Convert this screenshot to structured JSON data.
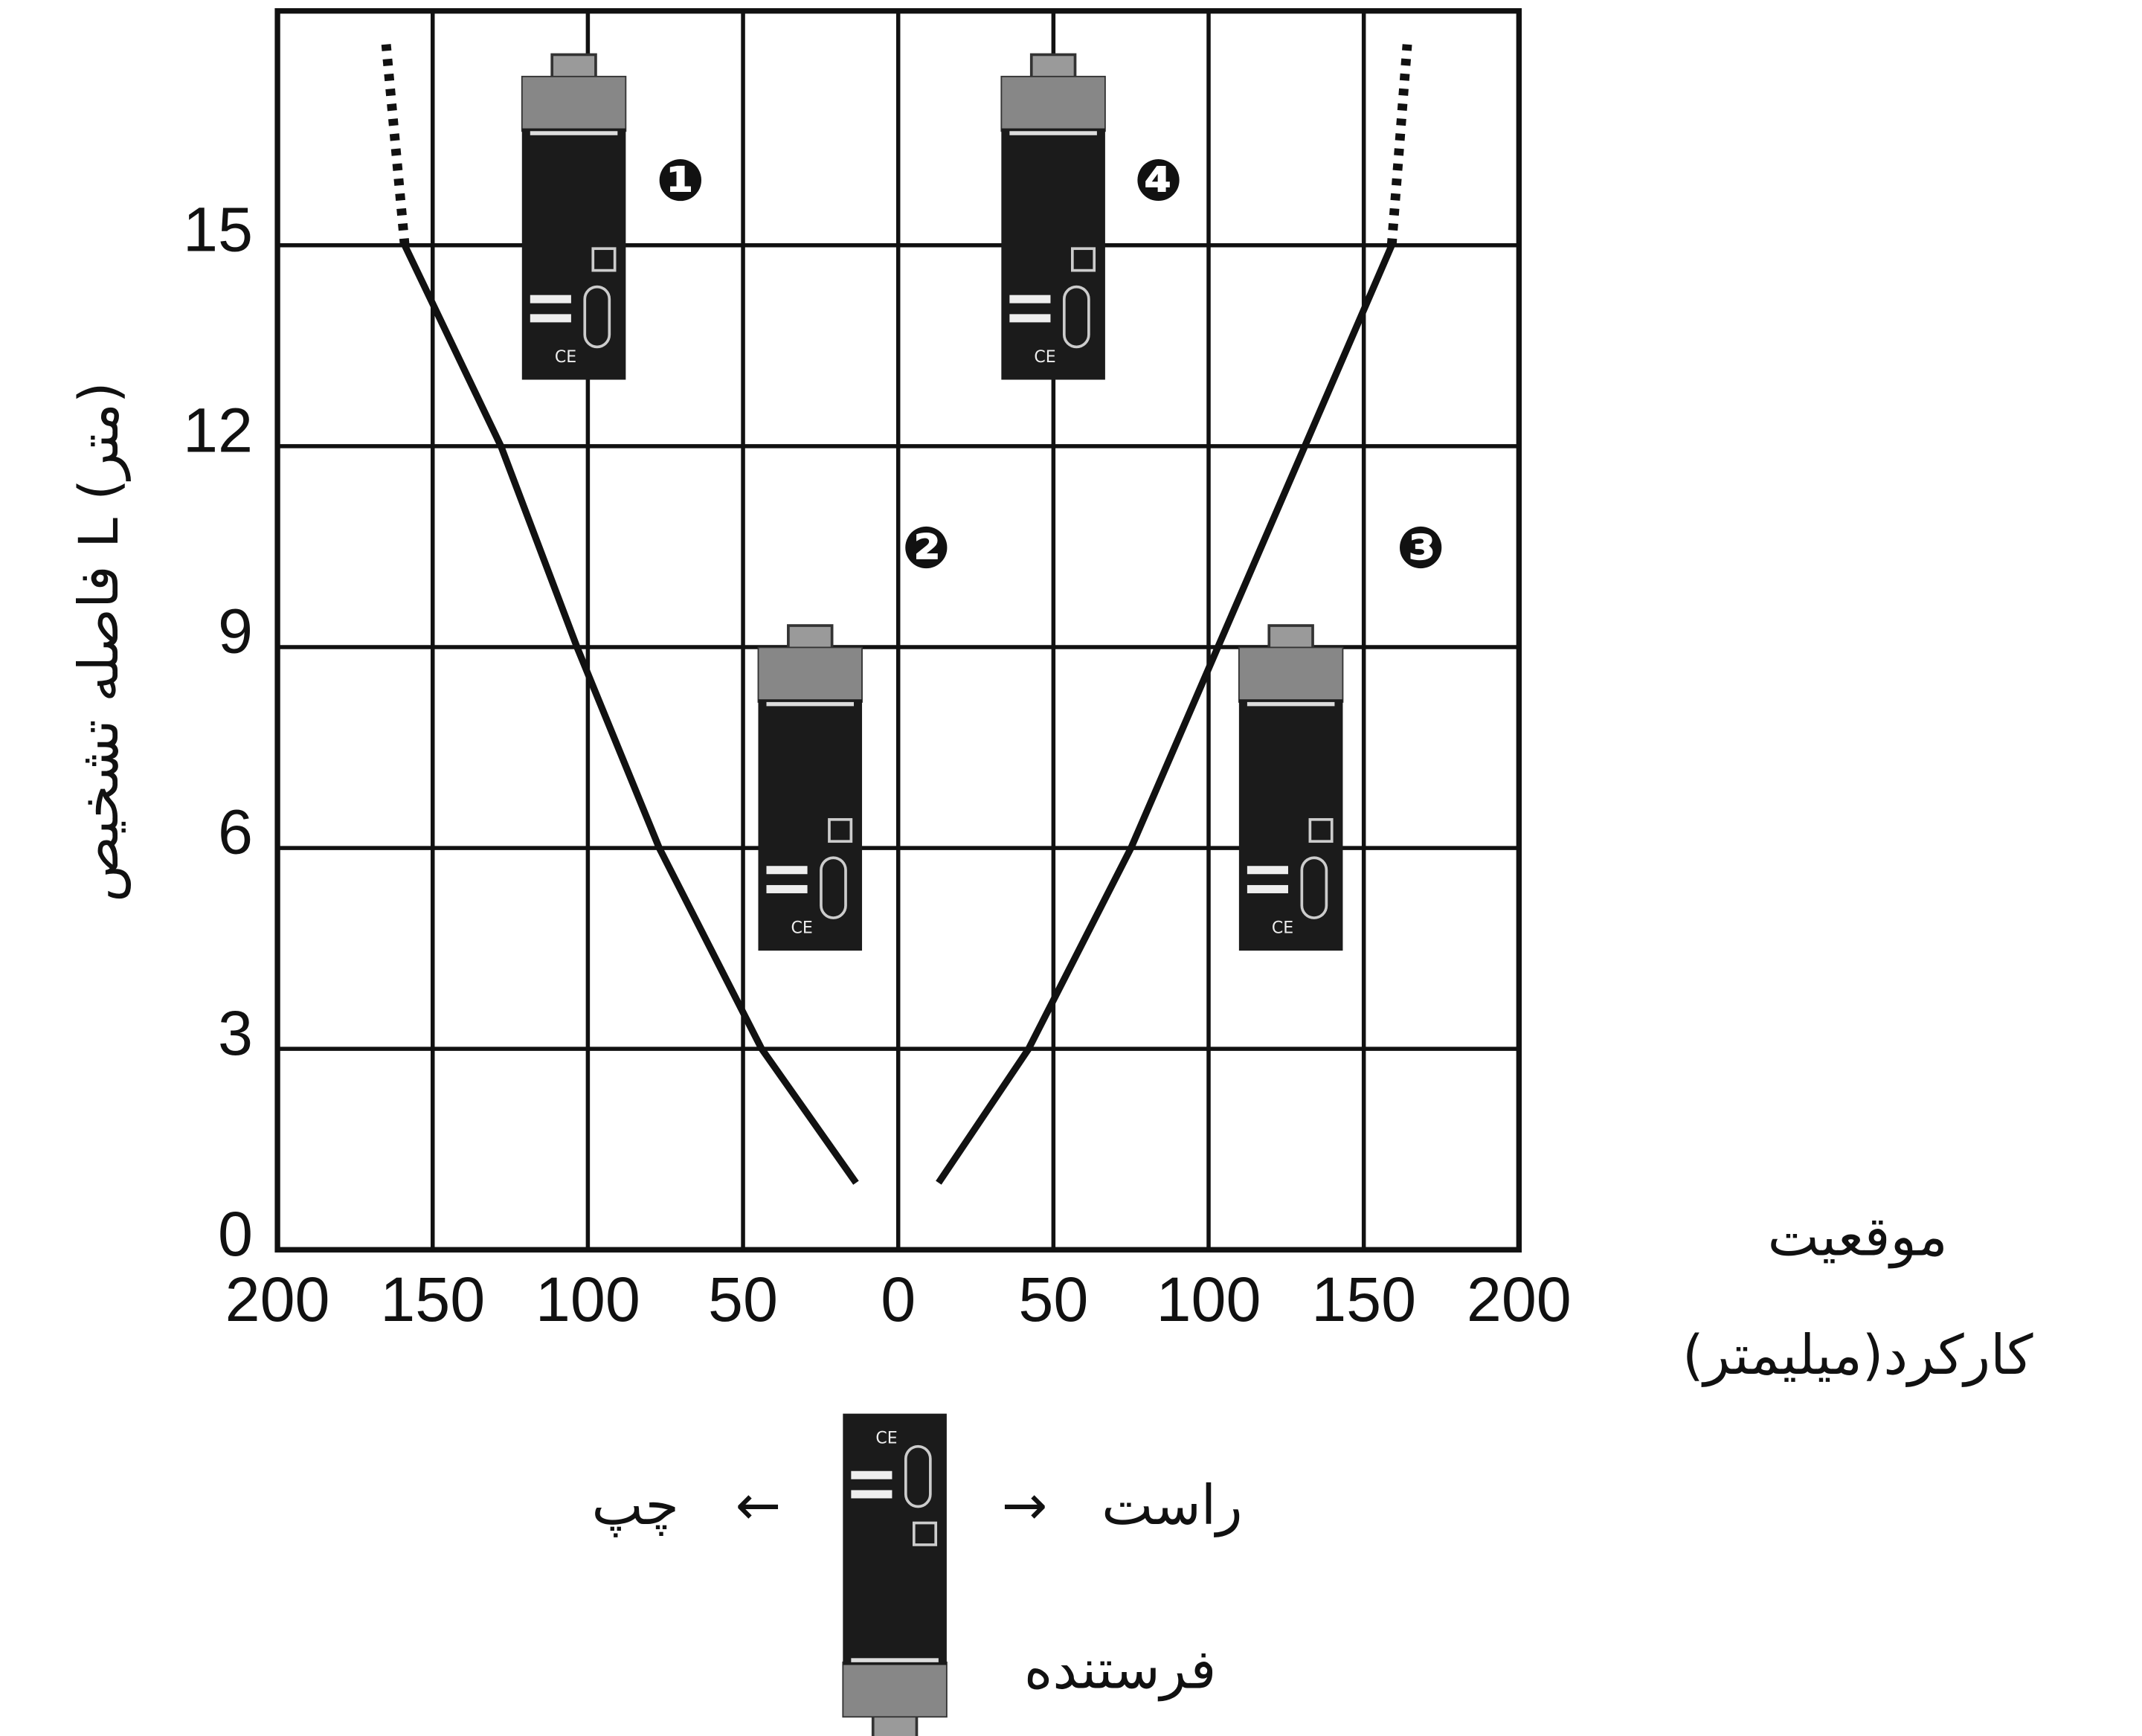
{
  "chart_data": {
    "type": "line",
    "xlim": [
      -200,
      200
    ],
    "ylim": [
      0,
      18.5
    ],
    "xticks": [
      {
        "value": -200,
        "label": "200"
      },
      {
        "value": -150,
        "label": "150"
      },
      {
        "value": -100,
        "label": "100"
      },
      {
        "value": -50,
        "label": "50"
      },
      0,
      50,
      100,
      150,
      200
    ],
    "yticks": [
      0,
      3,
      6,
      9,
      12,
      15
    ],
    "grid": true,
    "y_label": "فاصله تشخیص L (متر)",
    "x_label": [
      "موقعیت",
      "کارکرد(میلیمتر)"
    ],
    "series": [
      {
        "color": "#111111",
        "style": "solid",
        "x": [
          -13.6,
          -44,
          -77,
          -103.5,
          -128,
          -159
        ],
        "values": [
          1,
          3,
          6,
          9,
          12,
          15
        ]
      },
      {
        "color": "#111111",
        "style": "dotted",
        "x": [
          -159,
          -165
        ],
        "values": [
          15,
          18
        ]
      },
      {
        "color": "#111111",
        "style": "solid",
        "x": [
          13,
          42,
          75,
          103,
          131,
          159
        ],
        "values": [
          1,
          3,
          6,
          9,
          12,
          15
        ]
      },
      {
        "color": "#111111",
        "style": "dotted",
        "x": [
          159,
          164
        ],
        "values": [
          15,
          18
        ]
      }
    ],
    "zone_labels": [
      "❶",
      "❷",
      "❸",
      "❹"
    ],
    "left_label": "چپ",
    "left_arrow": "←",
    "right_arrow": "→",
    "right_label": "راست",
    "emitter_label": "فرستنده"
  }
}
